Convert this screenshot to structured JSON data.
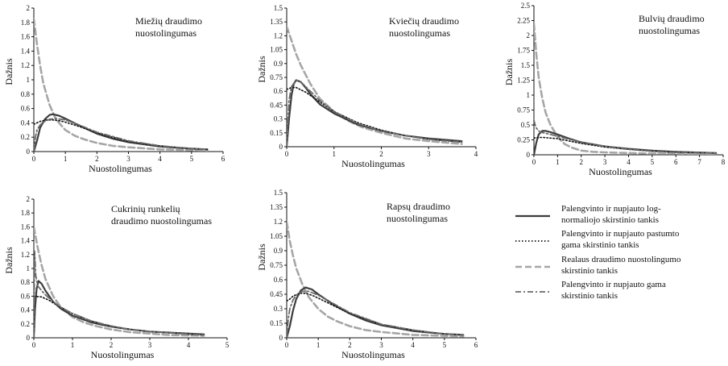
{
  "colors": {
    "lognormal": "#3d3d3d",
    "shifted_gamma": "#111111",
    "empirical": "#a6a6a6",
    "gamma": "#6a6a6a",
    "axis": "#111111"
  },
  "legend": {
    "items": [
      {
        "key": "lognormal",
        "line1": "Palengvinto ir nupjauto log-",
        "line2": "normaliojo skirstinio tankis"
      },
      {
        "key": "shifted_gamma",
        "line1": "Palengvinto ir nupjauto pastumto",
        "line2": "gama skirstinio tankis"
      },
      {
        "key": "empirical",
        "line1": "Realaus draudimo nuostolingumo",
        "line2": "skirstinio tankis"
      },
      {
        "key": "gamma",
        "line1": "Palengvinto ir nupjauto gama",
        "line2": "skirstinio tankis"
      }
    ]
  },
  "chart_data": [
    {
      "type": "line",
      "title_lines": [
        "Miežių draudimo",
        "nuostolingumas"
      ],
      "xlabel": "Nuostolingumas",
      "ylabel": "Dažnis",
      "xlim": [
        0,
        6
      ],
      "ylim": [
        0,
        2
      ],
      "xticks": [
        "0",
        "1",
        "2",
        "3",
        "4",
        "5",
        "6"
      ],
      "yticks": [
        "0",
        "0.2",
        "0.4",
        "0.6",
        "0.8",
        "1",
        "1.2",
        "1.4",
        "1.6",
        "1.8",
        "2"
      ],
      "series": [
        {
          "key": "empirical",
          "x": [
            0,
            0.1,
            0.2,
            0.3,
            0.5,
            0.7,
            1,
            1.3,
            1.6,
            2,
            2.5,
            3,
            4,
            5,
            5.5
          ],
          "y": [
            1.85,
            1.5,
            1.2,
            0.95,
            0.65,
            0.45,
            0.3,
            0.22,
            0.17,
            0.12,
            0.08,
            0.06,
            0.03,
            0.02,
            0.015
          ]
        },
        {
          "key": "lognormal",
          "x": [
            0,
            0.1,
            0.2,
            0.35,
            0.5,
            0.6,
            0.8,
            1,
            1.5,
            2,
            2.5,
            3,
            4,
            5,
            5.5
          ],
          "y": [
            0,
            0.15,
            0.33,
            0.45,
            0.51,
            0.52,
            0.5,
            0.46,
            0.35,
            0.25,
            0.18,
            0.13,
            0.07,
            0.04,
            0.03
          ]
        },
        {
          "key": "shifted_gamma",
          "x": [
            0,
            0.1,
            0.2,
            0.4,
            0.6,
            0.8,
            1,
            1.5,
            2,
            3,
            4,
            5,
            5.5
          ],
          "y": [
            0.38,
            0.4,
            0.42,
            0.44,
            0.44,
            0.43,
            0.41,
            0.34,
            0.26,
            0.14,
            0.08,
            0.04,
            0.03
          ]
        },
        {
          "key": "gamma",
          "x": [
            0,
            0.05,
            0.1,
            0.2,
            0.3,
            0.5,
            0.7,
            1,
            1.5,
            2,
            3,
            4,
            5,
            5.5
          ],
          "y": [
            0,
            0.2,
            0.3,
            0.37,
            0.41,
            0.45,
            0.46,
            0.44,
            0.36,
            0.27,
            0.15,
            0.08,
            0.04,
            0.03
          ]
        }
      ]
    },
    {
      "type": "line",
      "title_lines": [
        "Kviečių draudimo",
        "nuostolingumas"
      ],
      "xlabel": "Nuostolingumas",
      "ylabel": "Dažnis",
      "xlim": [
        0,
        4
      ],
      "ylim": [
        0,
        1.5
      ],
      "xticks": [
        "0",
        "1",
        "2",
        "3",
        "4"
      ],
      "yticks": [
        "0",
        "0.15",
        "0.3",
        "0.45",
        "0.6",
        "0.75",
        "0.9",
        "1.05",
        "1.2",
        "1.35",
        "1.5"
      ],
      "series": [
        {
          "key": "empirical",
          "x": [
            0,
            0.1,
            0.2,
            0.3,
            0.5,
            0.7,
            1,
            1.3,
            1.6,
            2,
            2.5,
            3,
            3.7
          ],
          "y": [
            1.3,
            1.15,
            1.0,
            0.88,
            0.68,
            0.52,
            0.38,
            0.28,
            0.21,
            0.15,
            0.09,
            0.06,
            0.03
          ]
        },
        {
          "key": "lognormal",
          "x": [
            0,
            0.05,
            0.1,
            0.15,
            0.2,
            0.3,
            0.4,
            0.5,
            0.7,
            1,
            1.5,
            2,
            2.5,
            3,
            3.7
          ],
          "y": [
            0,
            0.3,
            0.55,
            0.68,
            0.72,
            0.7,
            0.64,
            0.57,
            0.46,
            0.36,
            0.24,
            0.17,
            0.12,
            0.09,
            0.06
          ]
        },
        {
          "key": "shifted_gamma",
          "x": [
            0,
            0.1,
            0.2,
            0.4,
            0.6,
            0.8,
            1,
            1.5,
            2,
            2.5,
            3,
            3.7
          ],
          "y": [
            0.62,
            0.64,
            0.64,
            0.59,
            0.52,
            0.45,
            0.38,
            0.26,
            0.18,
            0.12,
            0.08,
            0.05
          ]
        },
        {
          "key": "gamma",
          "x": [
            0,
            0.05,
            0.1,
            0.2,
            0.3,
            0.5,
            0.7,
            1,
            1.5,
            2,
            2.5,
            3,
            3.7
          ],
          "y": [
            0,
            0.5,
            0.65,
            0.72,
            0.7,
            0.6,
            0.5,
            0.38,
            0.25,
            0.17,
            0.12,
            0.08,
            0.05
          ]
        }
      ]
    },
    {
      "type": "line",
      "title_lines": [
        "Bulvių draudimo",
        "nuostolingumas"
      ],
      "xlabel": "Nuostolingumas",
      "ylabel": "Dažnis",
      "xlim": [
        0,
        8
      ],
      "ylim": [
        0,
        2.5
      ],
      "xticks": [
        "0",
        "1",
        "2",
        "3",
        "4",
        "5",
        "6",
        "7",
        "8"
      ],
      "yticks": [
        "0",
        "0.25",
        "0.5",
        "0.75",
        "1",
        "1.25",
        "1.5",
        "1.75",
        "2",
        "2.25",
        "2.5"
      ],
      "series": [
        {
          "key": "empirical",
          "x": [
            0,
            0.1,
            0.2,
            0.35,
            0.5,
            0.7,
            1,
            1.3,
            1.6,
            2,
            2.5,
            3,
            4,
            5,
            6,
            7.7
          ],
          "y": [
            2.2,
            1.7,
            1.3,
            0.95,
            0.7,
            0.5,
            0.3,
            0.18,
            0.12,
            0.07,
            0.05,
            0.04,
            0.03,
            0.02,
            0.02,
            0.01
          ]
        },
        {
          "key": "lognormal",
          "x": [
            0,
            0.1,
            0.2,
            0.35,
            0.5,
            0.7,
            1,
            1.5,
            2,
            3,
            4,
            5,
            6,
            7.7
          ],
          "y": [
            0,
            0.2,
            0.34,
            0.4,
            0.4,
            0.38,
            0.34,
            0.27,
            0.21,
            0.14,
            0.1,
            0.07,
            0.05,
            0.03
          ]
        },
        {
          "key": "shifted_gamma",
          "x": [
            0,
            0.2,
            0.4,
            0.7,
            1,
            1.5,
            2,
            3,
            4,
            5,
            6,
            7.7
          ],
          "y": [
            0.28,
            0.29,
            0.29,
            0.28,
            0.27,
            0.23,
            0.19,
            0.13,
            0.09,
            0.06,
            0.04,
            0.03
          ]
        },
        {
          "key": "gamma",
          "x": [
            0,
            0.05,
            0.1,
            0.2,
            0.3,
            0.5,
            0.7,
            1,
            1.5,
            2,
            3,
            4,
            5,
            6,
            7.7
          ],
          "y": [
            0.58,
            0.5,
            0.45,
            0.4,
            0.38,
            0.36,
            0.34,
            0.31,
            0.26,
            0.21,
            0.14,
            0.09,
            0.06,
            0.04,
            0.03
          ]
        }
      ]
    },
    {
      "type": "line",
      "title_lines": [
        "Cukrinių runkelių",
        "draudimo nuostolingumas"
      ],
      "xlabel": "Nuostolingumas",
      "ylabel": "Dažnis",
      "xlim": [
        0,
        5
      ],
      "ylim": [
        0,
        2
      ],
      "xticks": [
        "0",
        "1",
        "2",
        "3",
        "4",
        "5"
      ],
      "yticks": [
        "0",
        "0.2",
        "0.4",
        "0.6",
        "0.8",
        "1",
        "1.2",
        "1.4",
        "1.6",
        "1.8",
        "2"
      ],
      "series": [
        {
          "key": "empirical",
          "x": [
            0,
            0.1,
            0.2,
            0.3,
            0.5,
            0.7,
            1,
            1.3,
            1.6,
            2,
            2.5,
            3,
            3.5,
            4.4
          ],
          "y": [
            1.6,
            1.3,
            1.05,
            0.85,
            0.6,
            0.44,
            0.3,
            0.22,
            0.17,
            0.12,
            0.08,
            0.06,
            0.04,
            0.03
          ]
        },
        {
          "key": "lognormal",
          "x": [
            0,
            0.03,
            0.07,
            0.12,
            0.2,
            0.3,
            0.5,
            0.7,
            1,
            1.5,
            2,
            2.5,
            3,
            4.4
          ],
          "y": [
            0,
            0.4,
            0.7,
            0.82,
            0.78,
            0.68,
            0.52,
            0.42,
            0.32,
            0.22,
            0.16,
            0.12,
            0.09,
            0.05
          ]
        },
        {
          "key": "shifted_gamma",
          "x": [
            0,
            0.2,
            0.4,
            0.6,
            0.8,
            1,
            1.5,
            2,
            2.5,
            3,
            3.5,
            4.4
          ],
          "y": [
            0.6,
            0.59,
            0.54,
            0.47,
            0.41,
            0.35,
            0.24,
            0.17,
            0.12,
            0.09,
            0.07,
            0.04
          ]
        },
        {
          "key": "gamma",
          "x": [
            0,
            0.02,
            0.05,
            0.1,
            0.2,
            0.3,
            0.5,
            0.7,
            1,
            1.5,
            2,
            2.5,
            3,
            4.4
          ],
          "y": [
            0,
            1.25,
            0.9,
            0.75,
            0.68,
            0.62,
            0.52,
            0.44,
            0.35,
            0.24,
            0.17,
            0.12,
            0.09,
            0.04
          ]
        }
      ]
    },
    {
      "type": "line",
      "title_lines": [
        "Rapsų draudimo",
        "nuostolingumas"
      ],
      "xlabel": "Nuostolingumas",
      "ylabel": "Dažnis",
      "xlim": [
        0,
        6
      ],
      "ylim": [
        0,
        1.5
      ],
      "xticks": [
        "0",
        "1",
        "2",
        "3",
        "4",
        "5",
        "6"
      ],
      "yticks": [
        "0",
        "0.15",
        "0.3",
        "0.45",
        "0.6",
        "0.75",
        "0.9",
        "1.05",
        "1.2",
        "1.35",
        "1.5"
      ],
      "series": [
        {
          "key": "empirical",
          "x": [
            0,
            0.1,
            0.2,
            0.3,
            0.5,
            0.7,
            1,
            1.3,
            1.6,
            2,
            2.5,
            3,
            4,
            5,
            5.6
          ],
          "y": [
            1.2,
            1.0,
            0.85,
            0.72,
            0.55,
            0.42,
            0.3,
            0.22,
            0.17,
            0.12,
            0.08,
            0.06,
            0.03,
            0.02,
            0.015
          ]
        },
        {
          "key": "lognormal",
          "x": [
            0,
            0.1,
            0.2,
            0.3,
            0.45,
            0.6,
            0.8,
            1,
            1.5,
            2,
            2.5,
            3,
            4,
            5,
            5.6
          ],
          "y": [
            0,
            0.12,
            0.28,
            0.4,
            0.49,
            0.52,
            0.5,
            0.45,
            0.34,
            0.25,
            0.18,
            0.13,
            0.07,
            0.04,
            0.03
          ]
        },
        {
          "key": "shifted_gamma",
          "x": [
            0,
            0.1,
            0.2,
            0.4,
            0.6,
            0.8,
            1,
            1.5,
            2,
            3,
            4,
            5,
            5.6
          ],
          "y": [
            0.38,
            0.4,
            0.43,
            0.46,
            0.46,
            0.44,
            0.41,
            0.33,
            0.25,
            0.14,
            0.08,
            0.04,
            0.03
          ]
        },
        {
          "key": "gamma",
          "x": [
            0,
            0.05,
            0.1,
            0.2,
            0.3,
            0.5,
            0.7,
            1,
            1.5,
            2,
            3,
            4,
            5,
            5.6
          ],
          "y": [
            0,
            0.2,
            0.3,
            0.39,
            0.44,
            0.48,
            0.48,
            0.44,
            0.35,
            0.26,
            0.14,
            0.08,
            0.04,
            0.03
          ]
        }
      ]
    }
  ]
}
